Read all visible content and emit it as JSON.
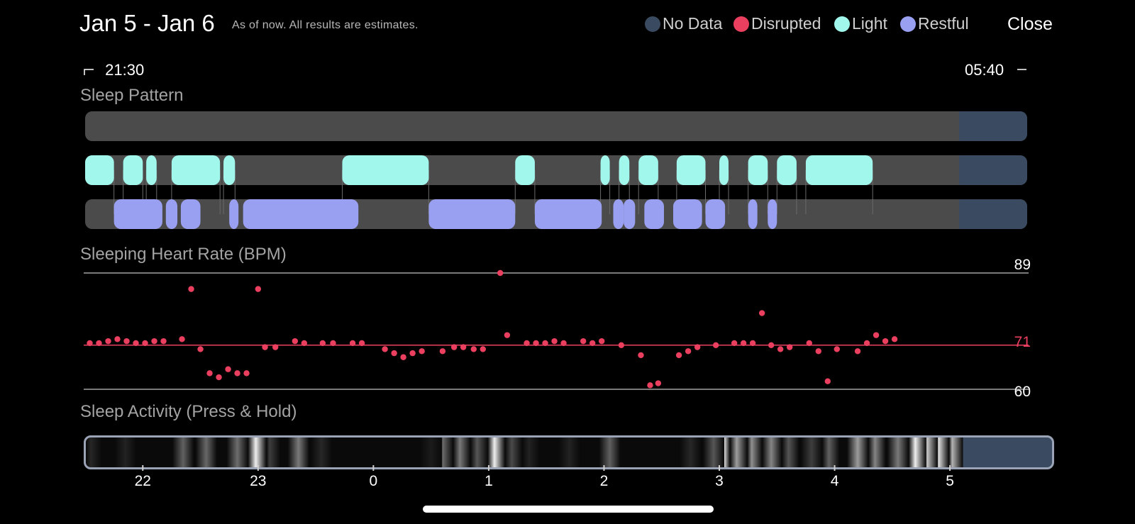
{
  "header": {
    "title": "Jan 5 - Jan 6",
    "subtitle": "As of now. All results are estimates.",
    "close_label": "Close"
  },
  "legend": [
    {
      "label": "No Data",
      "color": "#3a4a61"
    },
    {
      "label": "Disrupted",
      "color": "#ea3f5f"
    },
    {
      "label": "Light",
      "color": "#a2f7ed"
    },
    {
      "label": "Restful",
      "color": "#9aa0f1"
    }
  ],
  "range": {
    "start": "21:30",
    "end": "05:40"
  },
  "sections": {
    "pattern": "Sleep Pattern",
    "heart_rate": "Sleeping Heart Rate (BPM)",
    "activity": "Sleep Activity (Press & Hold)"
  },
  "colors": {
    "track": "#4b4b4b",
    "nodata": "#3a4a61",
    "light": "#a2f7ed",
    "restful": "#9aa0f1",
    "disrupted": "#ea3f5f"
  },
  "sleep_pattern": {
    "start_hour": 21.5,
    "end_hour": 29.67,
    "no_data_from": 29.08,
    "light": [
      [
        21.5,
        21.75
      ],
      [
        21.83,
        22.0
      ],
      [
        22.03,
        22.12
      ],
      [
        22.25,
        22.67
      ],
      [
        22.7,
        22.8
      ],
      [
        23.73,
        24.48
      ],
      [
        25.23,
        25.4
      ],
      [
        25.97,
        26.05
      ],
      [
        26.13,
        26.22
      ],
      [
        26.3,
        26.47
      ],
      [
        26.63,
        26.88
      ],
      [
        27.0,
        27.08
      ],
      [
        27.25,
        27.42
      ],
      [
        27.5,
        27.67
      ],
      [
        27.75,
        28.33
      ]
    ],
    "restful": [
      [
        21.75,
        22.17
      ],
      [
        22.2,
        22.3
      ],
      [
        22.33,
        22.5
      ],
      [
        22.75,
        22.83
      ],
      [
        22.87,
        23.87
      ],
      [
        24.48,
        25.23
      ],
      [
        25.4,
        25.98
      ],
      [
        26.08,
        26.17
      ],
      [
        26.17,
        26.27
      ],
      [
        26.35,
        26.52
      ],
      [
        26.6,
        26.85
      ],
      [
        26.88,
        27.05
      ],
      [
        27.25,
        27.33
      ],
      [
        27.42,
        27.5
      ]
    ]
  },
  "heart_rate": {
    "max_label": "89",
    "avg_label": "71",
    "min_label": "60",
    "max": 89,
    "avg": 71,
    "min": 60,
    "points": [
      [
        21.54,
        71.5
      ],
      [
        21.62,
        71.5
      ],
      [
        21.7,
        72
      ],
      [
        21.78,
        72.5
      ],
      [
        21.86,
        72
      ],
      [
        21.94,
        71.5
      ],
      [
        22.02,
        71.5
      ],
      [
        22.1,
        72
      ],
      [
        22.18,
        72
      ],
      [
        22.34,
        72.5
      ],
      [
        22.42,
        85
      ],
      [
        22.5,
        70
      ],
      [
        22.58,
        64
      ],
      [
        22.66,
        63
      ],
      [
        22.74,
        65
      ],
      [
        22.82,
        64
      ],
      [
        22.9,
        64
      ],
      [
        23.0,
        85
      ],
      [
        23.06,
        70.5
      ],
      [
        23.15,
        70.5
      ],
      [
        23.32,
        72
      ],
      [
        23.4,
        71.5
      ],
      [
        23.56,
        71.5
      ],
      [
        23.65,
        71.5
      ],
      [
        23.82,
        71.5
      ],
      [
        23.9,
        71.5
      ],
      [
        24.1,
        70
      ],
      [
        24.18,
        69
      ],
      [
        24.26,
        68
      ],
      [
        24.34,
        69
      ],
      [
        24.42,
        69.5
      ],
      [
        24.6,
        69.5
      ],
      [
        24.7,
        70.5
      ],
      [
        24.78,
        70.5
      ],
      [
        24.87,
        70
      ],
      [
        24.95,
        70
      ],
      [
        25.1,
        89
      ],
      [
        25.16,
        73.5
      ],
      [
        25.33,
        71.5
      ],
      [
        25.41,
        71.5
      ],
      [
        25.49,
        71.5
      ],
      [
        25.57,
        72
      ],
      [
        25.65,
        71.5
      ],
      [
        25.82,
        72
      ],
      [
        25.9,
        71.5
      ],
      [
        25.98,
        72
      ],
      [
        26.15,
        71
      ],
      [
        26.32,
        68.5
      ],
      [
        26.4,
        61
      ],
      [
        26.47,
        61.5
      ],
      [
        26.65,
        68.5
      ],
      [
        26.73,
        69.5
      ],
      [
        26.81,
        70.5
      ],
      [
        26.97,
        71
      ],
      [
        27.13,
        71.5
      ],
      [
        27.21,
        71.5
      ],
      [
        27.29,
        71.5
      ],
      [
        27.37,
        79
      ],
      [
        27.45,
        71
      ],
      [
        27.53,
        70
      ],
      [
        27.61,
        70.5
      ],
      [
        27.78,
        71.5
      ],
      [
        27.86,
        69.5
      ],
      [
        27.94,
        62
      ],
      [
        28.02,
        70
      ],
      [
        28.2,
        69.5
      ],
      [
        28.28,
        71.5
      ],
      [
        28.36,
        73.5
      ],
      [
        28.44,
        72
      ],
      [
        28.52,
        72.5
      ]
    ]
  },
  "activity": {
    "bands": [
      [
        21.55,
        0.1
      ],
      [
        21.85,
        0.08
      ],
      [
        22.35,
        0.35
      ],
      [
        22.55,
        0.38
      ],
      [
        22.82,
        0.4
      ],
      [
        22.98,
        0.95
      ],
      [
        23.1,
        0.2
      ],
      [
        23.35,
        0.45
      ],
      [
        23.55,
        0.1
      ],
      [
        24.5,
        0.05
      ],
      [
        24.6,
        0.4
      ],
      [
        24.75,
        0.45
      ],
      [
        24.9,
        0.3
      ],
      [
        25.05,
        0.95
      ],
      [
        25.2,
        0.25
      ],
      [
        25.35,
        0.08
      ],
      [
        25.7,
        0.08
      ],
      [
        26.05,
        0.35
      ],
      [
        26.75,
        0.1
      ],
      [
        26.95,
        0.3
      ],
      [
        27.0,
        0.9
      ],
      [
        27.15,
        0.6
      ],
      [
        27.28,
        0.55
      ],
      [
        27.45,
        0.5
      ],
      [
        27.6,
        0.3
      ],
      [
        27.8,
        0.2
      ],
      [
        27.95,
        0.35
      ],
      [
        28.2,
        0.6
      ],
      [
        28.35,
        0.5
      ],
      [
        28.55,
        0.45
      ],
      [
        28.7,
        0.95
      ],
      [
        28.8,
        0.8
      ],
      [
        28.9,
        0.9
      ],
      [
        29.02,
        0.7
      ]
    ],
    "ticks": [
      "22",
      "23",
      "0",
      "1",
      "2",
      "3",
      "4",
      "5"
    ],
    "tick_hours": [
      22,
      23,
      24,
      25,
      26,
      27,
      28,
      29
    ]
  }
}
